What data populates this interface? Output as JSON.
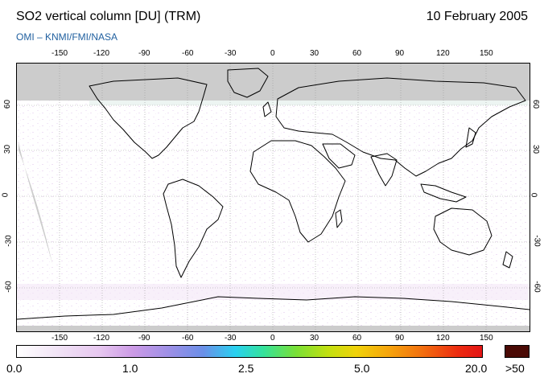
{
  "header": {
    "title": "SO2 vertical column [DU] (TRM)",
    "date": "10 February 2005",
    "credit": "OMI  –  KNMI/FMI/NASA"
  },
  "map": {
    "lon_ticks": [
      "-150",
      "-120",
      "-90",
      "-60",
      "-30",
      "0",
      "30",
      "60",
      "90",
      "120",
      "150"
    ],
    "lat_ticks": [
      "60",
      "30",
      "0",
      "-30",
      "-60"
    ]
  },
  "colorbar": {
    "labels": [
      "0.0",
      "1.0",
      "2.5",
      "5.0",
      "20.0"
    ],
    "max_label": ">50",
    "colors": [
      "#ffffff",
      "#e6c6ef",
      "#9b8fe6",
      "#29d1f0",
      "#79e036",
      "#f0d20a",
      "#f2700f",
      "#e41515",
      "#4a0a05"
    ]
  }
}
